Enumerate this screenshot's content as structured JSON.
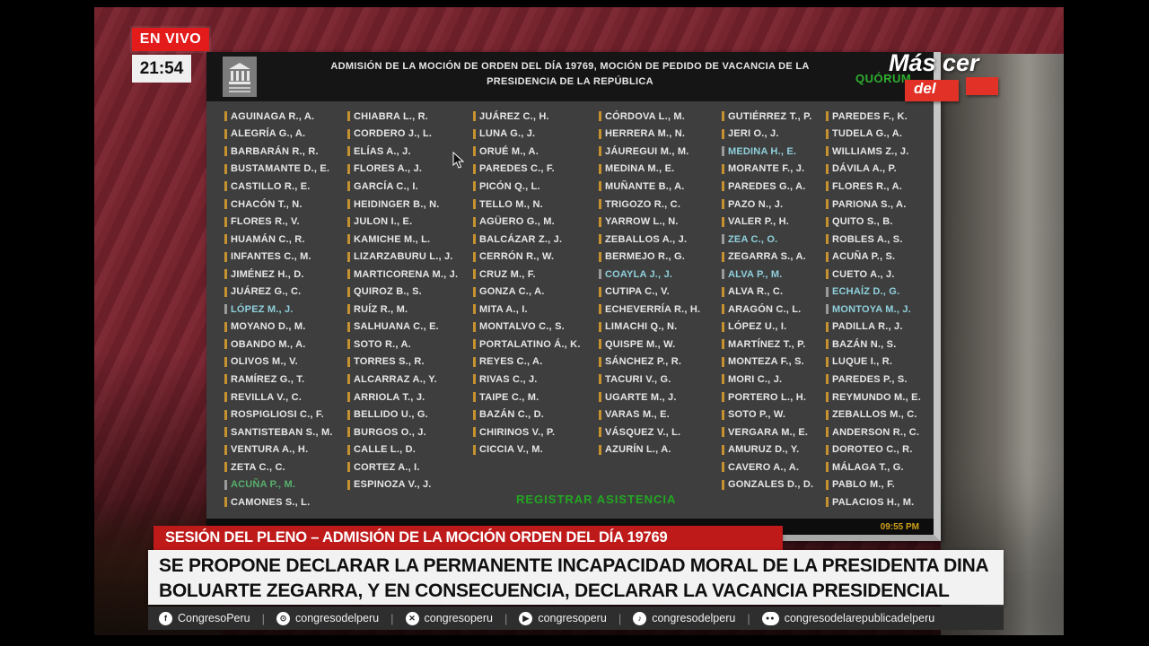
{
  "live_badge": "EN VIVO",
  "clock": "21:54",
  "watermark": {
    "mas": "Más cer",
    "del": "del"
  },
  "screen": {
    "title_line1": "ADMISIÓN DE LA MOCIÓN DE ORDEN DEL DÍA 19769, MOCIÓN DE PEDIDO DE VACANCIA DE LA",
    "title_line2": "PRESIDENCIA DE LA REPÚBLICA",
    "quorum_label": "QUÓRUM",
    "register_button": "REGISTRAR ASISTENCIA",
    "footer_time": "09:55 PM",
    "name_color_legend": "plain = white attendee, c| = cyan highlighted, g| = green highlighted",
    "columns": [
      [
        "AGUINAGA R., A.",
        "ALEGRÍA G., A.",
        "BARBARÁN R., R.",
        "BUSTAMANTE D., E.",
        "CASTILLO R., E.",
        "CHACÓN T., N.",
        "FLORES R., V.",
        "HUAMÁN C., R.",
        "INFANTES C., M.",
        "JIMÉNEZ H., D.",
        "JUÁREZ G., C.",
        "c|LÓPEZ M., J.",
        "MOYANO D., M.",
        "OBANDO M., A.",
        "OLIVOS M., V.",
        "RAMÍREZ G., T.",
        "REVILLA V., C.",
        "ROSPIGLIOSI C., F.",
        "SANTISTEBAN S., M.",
        "VENTURA A., H.",
        "ZETA C., C.",
        "g|ACUÑA P., M.",
        "CAMONES S., L."
      ],
      [
        "CHIABRA L., R.",
        "CORDERO J., L.",
        "ELÍAS A., J.",
        "FLORES A., J.",
        "GARCÍA C., I.",
        "HEIDINGER B., N.",
        "JULON I., E.",
        "KAMICHE M., L.",
        "LIZARZABURU L., J.",
        "MARTICORENA M., J.",
        "QUIROZ B., S.",
        "RUÍZ R., M.",
        "SALHUANA C., E.",
        "SOTO R., A.",
        "TORRES S., R.",
        "ALCARRAZ A., Y.",
        "ARRIOLA T., J.",
        "BELLIDO U., G.",
        "BURGOS O., J.",
        "CALLE L., D.",
        "CORTEZ A., I.",
        "ESPINOZA V., J."
      ],
      [
        "JUÁREZ C., H.",
        "LUNA G., J.",
        "ORUÉ M., A.",
        "PAREDES C., F.",
        "PICÓN Q., L.",
        "TELLO M., N.",
        "AGÜERO G., M.",
        "BALCÁZAR Z., J.",
        "CERRÓN R., W.",
        "CRUZ M., F.",
        "GONZA C., A.",
        "MITA A., I.",
        "MONTALVO C., S.",
        "PORTALATINO Á., K.",
        "REYES C., A.",
        "RIVAS C., J.",
        "TAIPE C., M.",
        "BAZÁN C., D.",
        "CHIRINOS V., P.",
        "CICCIA V., M."
      ],
      [
        "CÓRDOVA L., M.",
        "HERRERA M., N.",
        "JÁUREGUI M., M.",
        "MEDINA M., E.",
        "MUÑANTE B., A.",
        "TRIGOZO R., C.",
        "YARROW L., N.",
        "ZEBALLOS A., J.",
        "BERMEJO R., G.",
        "c|COAYLA J., J.",
        "CUTIPA C., V.",
        "ECHEVERRÍA R., H.",
        "LIMACHI Q., N.",
        "QUISPE M., W.",
        "SÁNCHEZ P., R.",
        "TACURI V., G.",
        "UGARTE M., J.",
        "VARAS M., E.",
        "VÁSQUEZ V., L.",
        "AZURÍN L., A."
      ],
      [
        "GUTIÉRREZ T., P.",
        "JERI O., J.",
        "c|MEDINA H., E.",
        "MORANTE F., J.",
        "PAREDES G., A.",
        "PAZO N., J.",
        "VALER P., H.",
        "c|ZEA C., O.",
        "ZEGARRA S., A.",
        "c|ALVA P., M.",
        "ALVA R., C.",
        "ARAGÓN C., L.",
        "LÓPEZ U., I.",
        "MARTÍNEZ T., P.",
        "MONTEZA F., S.",
        "MORI C., J.",
        "PORTERO L., H.",
        "SOTO P., W.",
        "VERGARA M., E.",
        "AMURUZ D., Y.",
        "CAVERO A., A.",
        "GONZALES D., D."
      ],
      [
        "PAREDES F., K.",
        "TUDELA G., A.",
        "WILLIAMS Z., J.",
        "DÁVILA A., P.",
        "FLORES R., A.",
        "PARIONA S., A.",
        "QUITO S., B.",
        "ROBLES A., S.",
        "ACUÑA P., S.",
        "CUETO A., J.",
        "c|ECHAÍZ D., G.",
        "c|MONTOYA M., J.",
        "PADILLA R., J.",
        "BAZÁN N., S.",
        "LUQUE I., R.",
        "PAREDES P., S.",
        "REYMUNDO M., E.",
        "ZEBALLOS M., C.",
        "ANDERSON R., C.",
        "DOROTEO C., R.",
        "MÁLAGA T., G.",
        "PABLO M., F.",
        "PALACIOS H., M."
      ]
    ]
  },
  "banners": {
    "red": "SESIÓN DEL PLENO – ADMISIÓN DE LA MOCIÓN ORDEN DEL DÍA 19769",
    "white_line1": "SE PROPONE DECLARAR LA PERMANENTE INCAPACIDAD MORAL DE LA PRESIDENTA DINA",
    "white_line2": "BOLUARTE ZEGARRA, Y EN CONSECUENCIA, DECLARAR LA VACANCIA PRESIDENCIAL"
  },
  "social": [
    {
      "icon": "facebook-icon",
      "handle": "CongresoPeru"
    },
    {
      "icon": "instagram-icon",
      "handle": "congresodelperu"
    },
    {
      "icon": "x-icon",
      "handle": "congresoperu"
    },
    {
      "icon": "youtube-icon",
      "handle": "congresoperu"
    },
    {
      "icon": "tiktok-icon",
      "handle": "congresodelperu"
    },
    {
      "icon": "flickr-icon",
      "handle": "congresodelarepublicadelperu"
    }
  ],
  "colors": {
    "accent_red": "#bf1a1a",
    "live_red": "#e31b1b",
    "name_white": "#e6e6e6",
    "name_cyan": "#8fd0dc",
    "name_green": "#57b06c",
    "bar_orange": "#c6922f",
    "quorum_green": "#2fae2f",
    "register_green": "#22a822",
    "time_orange": "#cfa01a"
  }
}
